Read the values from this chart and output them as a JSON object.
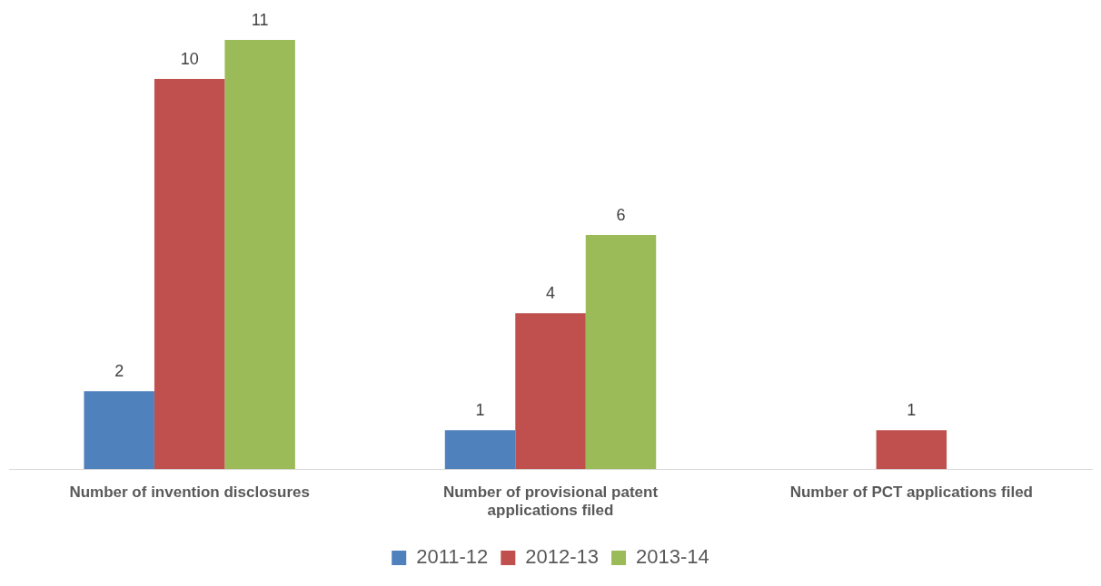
{
  "chart_data": {
    "type": "bar",
    "categories": [
      "Number of invention disclosures",
      "Number of provisional patent applications filed",
      "Number of PCT applications filed"
    ],
    "series": [
      {
        "name": "2011-12",
        "color": "#4f81bd",
        "values": [
          2,
          1,
          null
        ]
      },
      {
        "name": "2012-13",
        "color": "#c0504d",
        "values": [
          10,
          4,
          1
        ]
      },
      {
        "name": "2013-14",
        "color": "#9bbb59",
        "values": [
          11,
          6,
          null
        ]
      }
    ],
    "data_labels": true,
    "legend": "bottom"
  }
}
